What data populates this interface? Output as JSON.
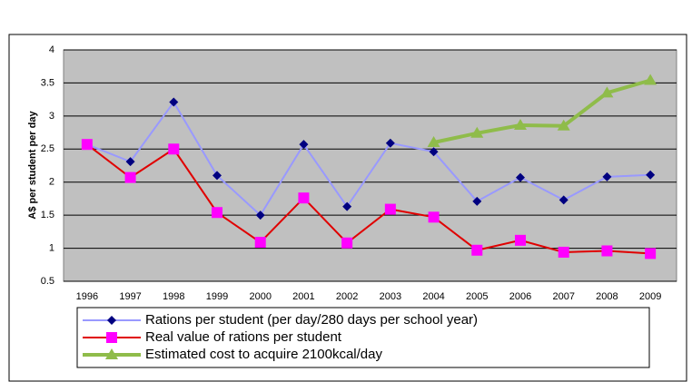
{
  "chart_data": {
    "type": "line",
    "y_label": "A$ per student per day",
    "categories": [
      "1996",
      "1997",
      "1998",
      "1999",
      "2000",
      "2001",
      "2002",
      "2003",
      "2004",
      "2005",
      "2006",
      "2007",
      "2008",
      "2009"
    ],
    "series": [
      {
        "name": "Rations per student (per day/280 days per school year)",
        "color": "#9999ff",
        "marker_color": "#000080",
        "marker": "diamond",
        "values": [
          2.57,
          2.31,
          3.21,
          2.1,
          1.5,
          2.57,
          1.63,
          2.59,
          2.46,
          1.71,
          2.07,
          1.73,
          2.08,
          2.11
        ]
      },
      {
        "name": "Real value of rations per student",
        "color": "#e00000",
        "marker_color": "#ff00ff",
        "marker": "square",
        "values": [
          2.57,
          2.07,
          2.5,
          1.54,
          1.09,
          1.76,
          1.08,
          1.59,
          1.47,
          0.97,
          1.12,
          0.94,
          0.96,
          0.92
        ]
      },
      {
        "name": "Estimated cost to acquire 2100kcal/day",
        "color": "#8fbc4a",
        "marker_color": "#8fbc4a",
        "marker": "triangle",
        "values": [
          null,
          null,
          null,
          null,
          null,
          null,
          null,
          null,
          2.6,
          2.74,
          2.86,
          2.85,
          3.35,
          3.54
        ]
      }
    ],
    "ylim": [
      0.5,
      4
    ],
    "yticks": [
      0.5,
      1,
      1.5,
      2,
      2.5,
      3,
      3.5,
      4
    ],
    "grid": true
  }
}
